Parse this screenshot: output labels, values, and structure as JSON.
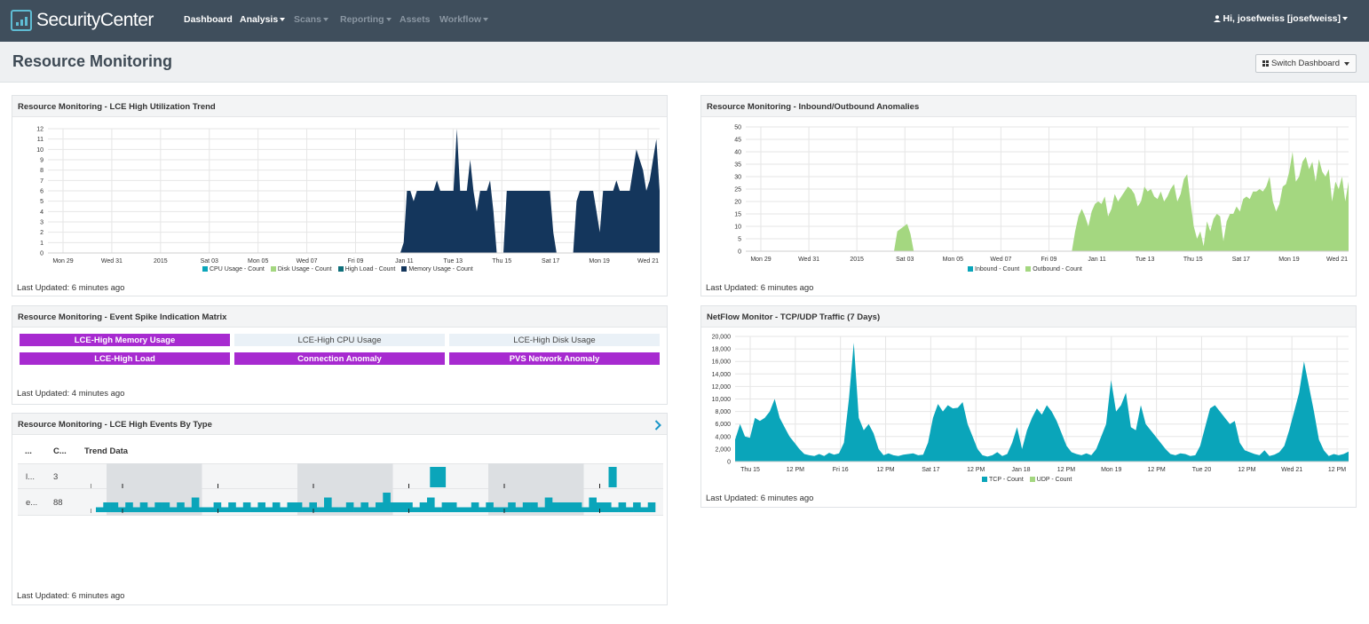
{
  "app": {
    "logo_text": "SecurityCenter",
    "nav": [
      "Dashboard",
      "Analysis",
      "Scans",
      "Reporting",
      "Assets",
      "Workflow"
    ],
    "user": "Hi, josefweiss [josefweiss]"
  },
  "page": {
    "title": "Resource Monitoring",
    "switch_label": "Switch Dashboard"
  },
  "colors": {
    "nav_bg": "#3f4e5c",
    "navy": "#14365c",
    "green": "#a4d780",
    "teal": "#0aa5ba",
    "purple": "#a72ad0"
  },
  "panels": {
    "lce_trend": {
      "title": "Resource Monitoring - LCE High Utilization Trend",
      "updated": "Last Updated: 6 minutes ago",
      "legend": [
        "CPU Usage - Count",
        "Disk Usage - Count",
        "High Load - Count",
        "Memory Usage - Count"
      ]
    },
    "anomalies": {
      "title": "Resource Monitoring - Inbound/Outbound Anomalies",
      "updated": "Last Updated: 6 minutes ago",
      "legend": [
        "Inbound - Count",
        "Outbound - Count"
      ]
    },
    "matrix": {
      "title": "Resource Monitoring - Event Spike Indication Matrix",
      "updated": "Last Updated: 4 minutes ago",
      "cells": [
        {
          "label": "LCE-High Memory Usage",
          "active": true
        },
        {
          "label": "LCE-High CPU Usage",
          "active": false
        },
        {
          "label": "LCE-High Disk Usage",
          "active": false
        },
        {
          "label": "LCE-High Load",
          "active": true
        },
        {
          "label": "Connection Anomaly",
          "active": true
        },
        {
          "label": "PVS Network Anomaly",
          "active": true
        }
      ]
    },
    "events": {
      "title": "Resource Monitoring - LCE High Events By Type",
      "updated": "Last Updated: 6 minutes ago",
      "columns": [
        "...",
        "C...",
        "Trend Data"
      ],
      "rows": [
        {
          "type": "l...",
          "count": "3",
          "trend": [
            0,
            0,
            0,
            0,
            0,
            0,
            0,
            0,
            0,
            0,
            0,
            0,
            0,
            0,
            0,
            0,
            0,
            0,
            0,
            0,
            0,
            0,
            0,
            0,
            0,
            0,
            0,
            0,
            0,
            0,
            0,
            0,
            0,
            0,
            0,
            0,
            0,
            0,
            0,
            0,
            0,
            0,
            0,
            1,
            1,
            0,
            0,
            0,
            0,
            0,
            0,
            0,
            0,
            0,
            0,
            0,
            0,
            0,
            0,
            0,
            0,
            0,
            0,
            0,
            0,
            0,
            1,
            0,
            0,
            0,
            0,
            0
          ]
        },
        {
          "type": "e...",
          "count": "88",
          "trend": [
            1,
            2,
            2,
            1,
            2,
            1,
            2,
            1,
            2,
            2,
            1,
            2,
            1,
            3,
            1,
            1,
            2,
            1,
            2,
            1,
            2,
            1,
            2,
            1,
            2,
            1,
            2,
            2,
            1,
            2,
            1,
            3,
            1,
            1,
            2,
            1,
            2,
            1,
            2,
            4,
            2,
            2,
            2,
            1,
            2,
            3,
            1,
            2,
            2,
            1,
            1,
            2,
            1,
            2,
            1,
            1,
            2,
            1,
            2,
            2,
            1,
            3,
            2,
            2,
            2,
            2,
            1,
            3,
            2,
            2,
            1,
            2,
            1,
            2,
            1,
            2
          ]
        }
      ]
    },
    "netflow": {
      "title": "NetFlow Monitor - TCP/UDP Traffic (7 Days)",
      "updated": "Last Updated: 6 minutes ago",
      "legend": [
        "TCP - Count",
        "UDP - Count"
      ]
    }
  },
  "chart_data": [
    {
      "type": "area",
      "title": "Resource Monitoring - LCE High Utilization Trend",
      "ylim": [
        0,
        12
      ],
      "yticks": [
        0,
        1,
        2,
        3,
        4,
        5,
        6,
        7,
        8,
        9,
        10,
        11,
        12
      ],
      "xticks": [
        "Mon 29",
        "Wed 31",
        "2015",
        "Sat 03",
        "Mon 05",
        "Wed 07",
        "Fri 09",
        "Jan 11",
        "Tue 13",
        "Thu 15",
        "Sat 17",
        "Mon 19",
        "Wed 21"
      ],
      "grid": true,
      "series": [
        {
          "name": "Memory Usage - Count",
          "values": [
            0,
            0,
            0,
            0,
            0,
            0,
            0,
            0,
            0,
            0,
            0,
            0,
            0,
            0,
            0,
            0,
            0,
            0,
            0,
            0,
            0,
            0,
            0,
            0,
            0,
            0,
            0,
            0,
            0,
            0,
            0,
            0,
            0,
            0,
            0,
            0,
            0,
            0,
            0,
            0,
            0,
            0,
            0,
            0,
            0,
            0,
            0,
            0,
            0,
            0,
            0,
            0,
            0,
            0,
            0,
            0,
            0,
            0,
            0,
            0,
            0,
            0,
            0,
            0,
            0,
            0,
            0,
            0,
            0,
            0,
            0,
            0,
            0,
            0,
            0,
            0,
            0,
            0,
            0,
            0,
            0,
            0,
            0,
            0,
            0,
            0,
            0,
            0,
            0,
            0,
            0,
            0,
            0,
            0,
            0,
            0,
            0,
            0,
            0,
            0,
            0,
            0,
            0,
            0,
            0,
            0,
            0,
            1,
            6,
            6,
            5,
            6,
            6,
            6,
            6,
            6,
            6,
            7,
            6,
            6,
            6,
            6,
            6,
            12,
            6,
            6,
            6,
            9,
            6,
            4,
            6,
            6,
            6,
            7,
            4,
            0,
            0,
            0,
            6,
            6,
            6,
            6,
            6,
            6,
            6,
            6,
            6,
            6,
            6,
            6,
            6,
            6,
            2,
            0,
            0,
            0,
            0,
            0,
            0,
            5,
            6,
            6,
            6,
            6,
            6,
            4,
            2,
            6,
            6,
            6,
            6,
            7,
            6,
            6,
            6,
            6,
            8,
            10,
            9,
            8,
            6,
            7,
            9,
            11,
            6
          ]
        }
      ]
    },
    {
      "type": "area",
      "title": "Resource Monitoring - Inbound/Outbound Anomalies",
      "ylim": [
        0,
        50
      ],
      "yticks": [
        0,
        5,
        10,
        15,
        20,
        25,
        30,
        35,
        40,
        45,
        50
      ],
      "xticks": [
        "Mon 29",
        "Wed 31",
        "2015",
        "Sat 03",
        "Mon 05",
        "Wed 07",
        "Fri 09",
        "Jan 11",
        "Tue 13",
        "Thu 15",
        "Sat 17",
        "Mon 19",
        "Wed 21"
      ],
      "grid": true,
      "series": [
        {
          "name": "Outbound - Count",
          "values": [
            0,
            0,
            0,
            0,
            0,
            0,
            0,
            0,
            0,
            0,
            0,
            0,
            0,
            0,
            0,
            0,
            0,
            0,
            0,
            0,
            0,
            0,
            0,
            0,
            0,
            0,
            0,
            0,
            0,
            0,
            0,
            0,
            0,
            0,
            0,
            0,
            0,
            0,
            0,
            0,
            0,
            0,
            0,
            0,
            0,
            0,
            8,
            9,
            10,
            11,
            7,
            0,
            0,
            0,
            0,
            0,
            0,
            0,
            0,
            0,
            0,
            0,
            0,
            0,
            0,
            0,
            0,
            0,
            0,
            0,
            0,
            0,
            0,
            0,
            0,
            0,
            0,
            0,
            0,
            0,
            0,
            0,
            0,
            0,
            0,
            0,
            0,
            0,
            0,
            0,
            0,
            0,
            0,
            0,
            0,
            0,
            0,
            0,
            0,
            0,
            8,
            14,
            17,
            14,
            10,
            16,
            19,
            20,
            19,
            22,
            14,
            17,
            23,
            20,
            22,
            24,
            26,
            25,
            23,
            18,
            20,
            26,
            24,
            25,
            22,
            21,
            24,
            20,
            22,
            25,
            27,
            20,
            23,
            29,
            31,
            20,
            10,
            5,
            8,
            2,
            12,
            8,
            13,
            15,
            14,
            4,
            12,
            15,
            15,
            18,
            16,
            21,
            22,
            21,
            24,
            24,
            25,
            24,
            26,
            30,
            20,
            16,
            19,
            26,
            27,
            32,
            40,
            28,
            30,
            36,
            38,
            33,
            36,
            28,
            37,
            32,
            30,
            33,
            20,
            28,
            25,
            30,
            20,
            28
          ]
        }
      ]
    },
    {
      "type": "area",
      "title": "NetFlow Monitor - TCP/UDP Traffic (7 Days)",
      "ylim": [
        0,
        20000
      ],
      "yticks": [
        0,
        2000,
        4000,
        6000,
        8000,
        10000,
        12000,
        14000,
        16000,
        18000,
        20000
      ],
      "xticks": [
        "Thu 15",
        "12 PM",
        "Fri 16",
        "12 PM",
        "Sat 17",
        "12 PM",
        "Jan 18",
        "12 PM",
        "Mon 19",
        "12 PM",
        "Tue 20",
        "12 PM",
        "Wed 21",
        "12 PM"
      ],
      "grid": true,
      "series": [
        {
          "name": "TCP - Count",
          "values": [
            3500,
            6000,
            4000,
            3800,
            7000,
            6500,
            7000,
            8000,
            10000,
            7000,
            5500,
            4000,
            3000,
            2000,
            1200,
            1000,
            900,
            1200,
            900,
            1400,
            1100,
            1300,
            3000,
            10000,
            19000,
            7000,
            5000,
            6000,
            4500,
            2000,
            1000,
            1300,
            1000,
            900,
            1100,
            1200,
            1300,
            1000,
            1100,
            3000,
            7000,
            9200,
            8000,
            9000,
            8500,
            8600,
            9500,
            6000,
            4000,
            2000,
            1000,
            800,
            1000,
            1500,
            900,
            1200,
            3000,
            5500,
            2000,
            5000,
            7000,
            8500,
            7500,
            9000,
            8000,
            6500,
            4500,
            2500,
            1500,
            1200,
            1000,
            1300,
            1000,
            2000,
            4000,
            6000,
            13000,
            8000,
            9000,
            11000,
            5500,
            5000,
            9000,
            6000,
            5000,
            4000,
            3000,
            2000,
            1200,
            1000,
            1300,
            1200,
            900,
            1000,
            2500,
            5500,
            8500,
            9000,
            8000,
            7000,
            6000,
            6500,
            3000,
            1800,
            1500,
            1200,
            1000,
            1800,
            900,
            1100,
            1500,
            2500,
            5000,
            8000,
            11000,
            16000,
            12000,
            8000,
            3500,
            1800,
            900,
            1200,
            1000,
            1200,
            1600
          ]
        }
      ]
    }
  ]
}
